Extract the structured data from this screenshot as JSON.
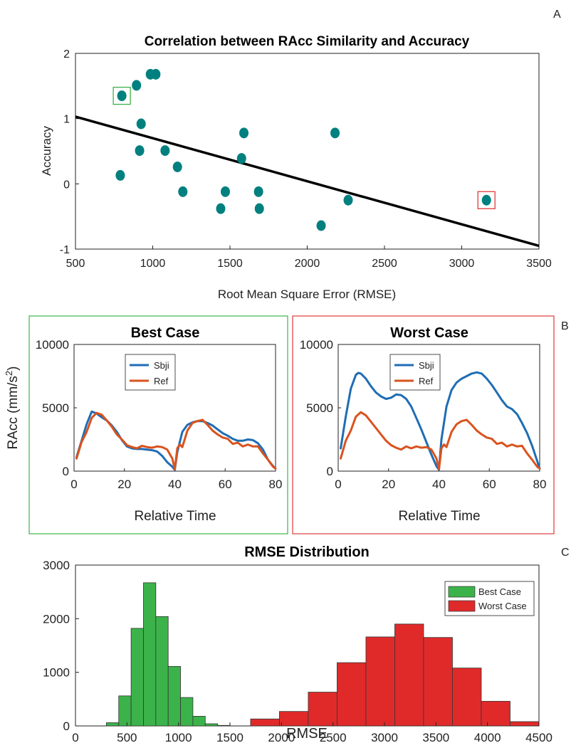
{
  "chart_data": [
    {
      "id": "A",
      "panel_label": "A",
      "type": "scatter",
      "title": "Correlation between RAcc Similarity and Accuracy",
      "xlabel": "Root Mean Square Error (RMSE)",
      "ylabel": "Accuracy",
      "xlim": [
        500,
        3500
      ],
      "ylim": [
        -1,
        2
      ],
      "xticks": [
        500,
        1000,
        1500,
        2000,
        2500,
        3000,
        3500
      ],
      "yticks": [
        -1,
        0,
        1,
        2
      ],
      "point_color": "#00807f",
      "line_color": "#000000",
      "points": [
        {
          "x": 790,
          "y": 0.13
        },
        {
          "x": 800,
          "y": 1.35
        },
        {
          "x": 895,
          "y": 1.51
        },
        {
          "x": 915,
          "y": 0.51
        },
        {
          "x": 925,
          "y": 0.92
        },
        {
          "x": 985,
          "y": 1.68
        },
        {
          "x": 1020,
          "y": 1.68
        },
        {
          "x": 1080,
          "y": 0.51
        },
        {
          "x": 1160,
          "y": 0.26
        },
        {
          "x": 1195,
          "y": -0.12
        },
        {
          "x": 1440,
          "y": -0.38
        },
        {
          "x": 1470,
          "y": -0.12
        },
        {
          "x": 1575,
          "y": 0.39
        },
        {
          "x": 1590,
          "y": 0.78
        },
        {
          "x": 1685,
          "y": -0.12
        },
        {
          "x": 1690,
          "y": -0.38
        },
        {
          "x": 2090,
          "y": -0.64
        },
        {
          "x": 2180,
          "y": 0.78
        },
        {
          "x": 2265,
          "y": -0.25
        },
        {
          "x": 3160,
          "y": -0.25
        }
      ],
      "fit_line": {
        "x": [
          500,
          3500
        ],
        "y": [
          1.03,
          -0.95
        ]
      },
      "highlights": [
        {
          "x": 800,
          "y": 1.35,
          "color": "#3cb34a"
        },
        {
          "x": 3160,
          "y": -0.25,
          "color": "#e03a3a"
        }
      ]
    },
    {
      "id": "B1",
      "panel_label": "B",
      "type": "line",
      "title": "Best Case",
      "xlabel": "Relative Time",
      "ylabel": "RAcc (mm/s",
      "ylabel_sup": "2",
      "ylabel_close": ")",
      "xlim": [
        0,
        80
      ],
      "ylim": [
        0,
        10000
      ],
      "xticks": [
        0,
        20,
        40,
        60,
        80
      ],
      "yticks": [
        0,
        5000,
        10000
      ],
      "frame_color": "#3cb34a",
      "series": [
        {
          "name": "Sbji",
          "color": "#1f6db3",
          "x": [
            1,
            3,
            5,
            7,
            9,
            11,
            13,
            15,
            17,
            19,
            21,
            23,
            25,
            27,
            29,
            31,
            33,
            35,
            37,
            39,
            40,
            41,
            43,
            45,
            47,
            49,
            51,
            53,
            55,
            57,
            59,
            61,
            63,
            65,
            67,
            69,
            71,
            73,
            75,
            77,
            79,
            80
          ],
          "y": [
            1100,
            2400,
            3700,
            4700,
            4550,
            4250,
            4000,
            3600,
            3100,
            2450,
            1950,
            1800,
            1750,
            1750,
            1700,
            1650,
            1550,
            1200,
            700,
            350,
            100,
            1500,
            3100,
            3650,
            3850,
            3950,
            3950,
            3800,
            3600,
            3300,
            3000,
            2800,
            2550,
            2400,
            2400,
            2500,
            2450,
            2200,
            1700,
            900,
            400,
            200
          ]
        },
        {
          "name": "Ref",
          "color": "#d9531e",
          "x": [
            1,
            3,
            5,
            7,
            9,
            11,
            13,
            15,
            17,
            19,
            21,
            23,
            25,
            27,
            29,
            31,
            33,
            35,
            37,
            39,
            40,
            41,
            42,
            43,
            45,
            47,
            49,
            51,
            53,
            55,
            57,
            59,
            61,
            63,
            65,
            67,
            69,
            71,
            73,
            75,
            77,
            79,
            80
          ],
          "y": [
            1000,
            2300,
            3100,
            4200,
            4600,
            4450,
            4000,
            3500,
            2900,
            2500,
            2050,
            1900,
            1800,
            2000,
            1900,
            1850,
            1950,
            1900,
            1700,
            1000,
            150,
            1800,
            2100,
            1900,
            3200,
            3800,
            3950,
            4050,
            3650,
            3200,
            2900,
            2650,
            2550,
            2150,
            2250,
            1950,
            2100,
            1950,
            1950,
            1400,
            900,
            350,
            200
          ]
        }
      ],
      "legend": "top-center"
    },
    {
      "id": "B2",
      "type": "line",
      "title": "Worst Case",
      "xlabel": "Relative Time",
      "xlim": [
        0,
        80
      ],
      "ylim": [
        0,
        10000
      ],
      "xticks": [
        0,
        20,
        40,
        60,
        80
      ],
      "yticks": [
        0,
        5000,
        10000
      ],
      "frame_color": "#e03a3a",
      "series": [
        {
          "name": "Sbji",
          "color": "#1f6db3",
          "x": [
            1,
            3,
            5,
            7,
            8,
            9,
            11,
            13,
            15,
            17,
            19,
            21,
            23,
            25,
            27,
            29,
            31,
            33,
            35,
            37,
            39,
            40,
            41,
            43,
            45,
            47,
            49,
            51,
            53,
            55,
            57,
            59,
            61,
            63,
            65,
            67,
            69,
            71,
            73,
            75,
            77,
            79,
            80
          ],
          "y": [
            1800,
            4300,
            6500,
            7600,
            7750,
            7700,
            7300,
            6700,
            6200,
            5900,
            5700,
            5800,
            6050,
            6000,
            5700,
            5100,
            4200,
            3300,
            2300,
            1300,
            400,
            100,
            2500,
            5100,
            6400,
            7000,
            7300,
            7500,
            7700,
            7800,
            7700,
            7300,
            6800,
            6200,
            5600,
            5100,
            4900,
            4500,
            3800,
            3000,
            2000,
            800,
            200
          ]
        },
        {
          "name": "Ref",
          "color": "#d9531e",
          "x": [
            1,
            3,
            5,
            7,
            9,
            11,
            13,
            15,
            17,
            19,
            21,
            23,
            25,
            27,
            29,
            31,
            33,
            35,
            37,
            39,
            40,
            41,
            42,
            43,
            45,
            47,
            49,
            51,
            53,
            55,
            57,
            59,
            61,
            63,
            65,
            67,
            69,
            71,
            73,
            75,
            77,
            79,
            80
          ],
          "y": [
            1000,
            2400,
            3200,
            4300,
            4650,
            4400,
            3900,
            3400,
            2900,
            2400,
            2050,
            1850,
            1700,
            1950,
            1800,
            1950,
            1850,
            1900,
            1700,
            1000,
            150,
            1800,
            2100,
            1900,
            3100,
            3700,
            3950,
            4050,
            3650,
            3200,
            2900,
            2650,
            2550,
            2150,
            2250,
            1950,
            2100,
            1950,
            2000,
            1400,
            900,
            350,
            200
          ]
        }
      ],
      "legend": "top-center"
    },
    {
      "id": "C",
      "panel_label": "C",
      "type": "bar",
      "title": "RMSE Distribution",
      "xlabel": "RMSE",
      "xlim": [
        0,
        4500
      ],
      "ylim": [
        0,
        3000
      ],
      "xticks": [
        0,
        500,
        1000,
        1500,
        2000,
        2500,
        3000,
        3500,
        4000,
        4500
      ],
      "yticks": [
        0,
        1000,
        2000,
        3000
      ],
      "legend": "top-right",
      "series": [
        {
          "name": "Best Case",
          "color": "#3cb34a",
          "edges": [
            300,
            420,
            540,
            660,
            780,
            900,
            1020,
            1140,
            1260,
            1380,
            1500
          ],
          "counts": [
            60,
            560,
            1820,
            2670,
            2040,
            1110,
            530,
            180,
            40,
            10
          ]
        },
        {
          "name": "Worst Case",
          "color": "#e02a2a",
          "edges": [
            1700,
            1980,
            2260,
            2540,
            2820,
            3100,
            3380,
            3660,
            3940,
            4220,
            4500
          ],
          "counts": [
            130,
            270,
            630,
            1180,
            1660,
            1900,
            1650,
            1080,
            460,
            80
          ]
        }
      ]
    }
  ]
}
